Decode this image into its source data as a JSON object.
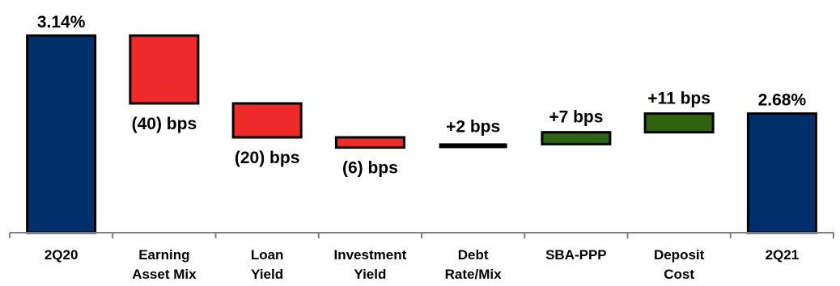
{
  "chart_data": {
    "type": "waterfall",
    "unit": "bps",
    "categories": [
      [
        "2Q20"
      ],
      [
        "Earning",
        "Asset Mix"
      ],
      [
        "Loan",
        "Yield"
      ],
      [
        "Investment",
        "Yield"
      ],
      [
        "Debt",
        "Rate/Mix"
      ],
      [
        "SBA-PPP"
      ],
      [
        "Deposit",
        "Cost"
      ],
      [
        "2Q21"
      ]
    ],
    "bars": [
      {
        "kind": "total",
        "value": 3.14,
        "label": "3.14%"
      },
      {
        "kind": "decrease",
        "value": -40,
        "label": "(40) bps"
      },
      {
        "kind": "decrease",
        "value": -20,
        "label": "(20) bps"
      },
      {
        "kind": "decrease",
        "value": -6,
        "label": "(6) bps"
      },
      {
        "kind": "neutral",
        "value": 2,
        "label": "+2 bps"
      },
      {
        "kind": "increase",
        "value": 7,
        "label": "+7 bps"
      },
      {
        "kind": "increase",
        "value": 11,
        "label": "+11 bps"
      },
      {
        "kind": "total",
        "value": 2.68,
        "label": "2.68%"
      }
    ],
    "colors": {
      "total": "#002f6c",
      "decrease": "#ee2b2b",
      "increase": "#2e6411",
      "neutral": "#000000",
      "outline": "#000000",
      "axis": "#7f7f7f"
    },
    "grid": false,
    "legend": "none"
  }
}
